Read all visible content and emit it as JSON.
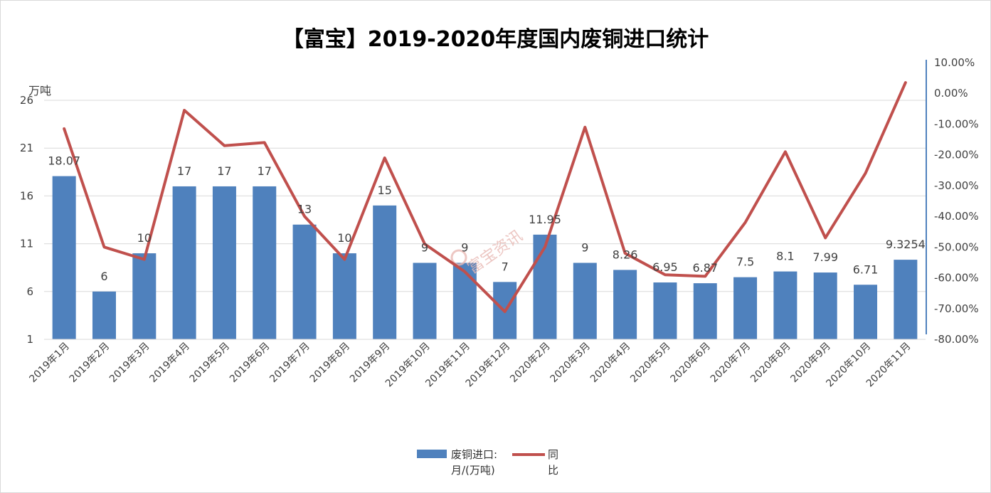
{
  "title": "【富宝】2019-2020年度国内废铜进口统计",
  "watermark": "富宝资讯",
  "colors": {
    "bar": "#4f81bd",
    "line": "#c0504d",
    "grid": "#d9d9d9",
    "right_axis": "#4f81bd"
  },
  "legend": {
    "bar_label": "废铜进口:月/(万吨)",
    "line_label": "同比"
  },
  "chart_data": {
    "type": "bar",
    "title": "【富宝】2019-2020年度国内废铜进口统计",
    "ylabel": "万吨",
    "ylim": [
      1,
      26
    ],
    "yticks": [
      "26",
      "21",
      "16",
      "11",
      "6",
      "1"
    ],
    "y2lim": [
      -80,
      10
    ],
    "y2ticks": [
      "10.00%",
      "0.00%",
      "-10.00%",
      "-20.00%",
      "-30.00%",
      "-40.00%",
      "-50.00%",
      "-60.00%",
      "-70.00%",
      "-80.00%"
    ],
    "grid": true,
    "legend_position": "bottom",
    "categories": [
      "2019年1月",
      "2019年2月",
      "2019年3月",
      "2019年4月",
      "2019年5月",
      "2019年6月",
      "2019年7月",
      "2019年8月",
      "2019年9月",
      "2019年10月",
      "2019年11月",
      "2019年12月",
      "2020年2月",
      "2020年3月",
      "2020年4月",
      "2020年5月",
      "2020年6月",
      "2020年7月",
      "2020年8月",
      "2020年9月",
      "2020年10月",
      "2020年11月"
    ],
    "series": [
      {
        "name": "废铜进口:月/(万吨)",
        "type": "bar",
        "axis": "left",
        "values": [
          18.07,
          6,
          10,
          17,
          17,
          17,
          13,
          10,
          15,
          9,
          9,
          7,
          11.95,
          9,
          8.26,
          6.95,
          6.87,
          7.5,
          8.1,
          7.99,
          6.71,
          9.3254
        ],
        "labels": [
          "18.07",
          "6",
          "10",
          "17",
          "17",
          "17",
          "13",
          "10",
          "15",
          "9",
          "9",
          "7",
          "11.95",
          "9",
          "8.26",
          "6.95",
          "6.87",
          "7.5",
          "8.1",
          "7.99",
          "6.71",
          "9.3254"
        ]
      },
      {
        "name": "同比",
        "type": "line",
        "axis": "right",
        "unit": "%",
        "values": [
          -11.5,
          -50,
          -54,
          -5.5,
          -17,
          -16,
          -40,
          -54,
          -21,
          -49,
          -58,
          -71,
          -50,
          -11,
          -52,
          -59,
          -59.5,
          -42,
          -19,
          -47,
          -26,
          3.5
        ]
      }
    ]
  }
}
